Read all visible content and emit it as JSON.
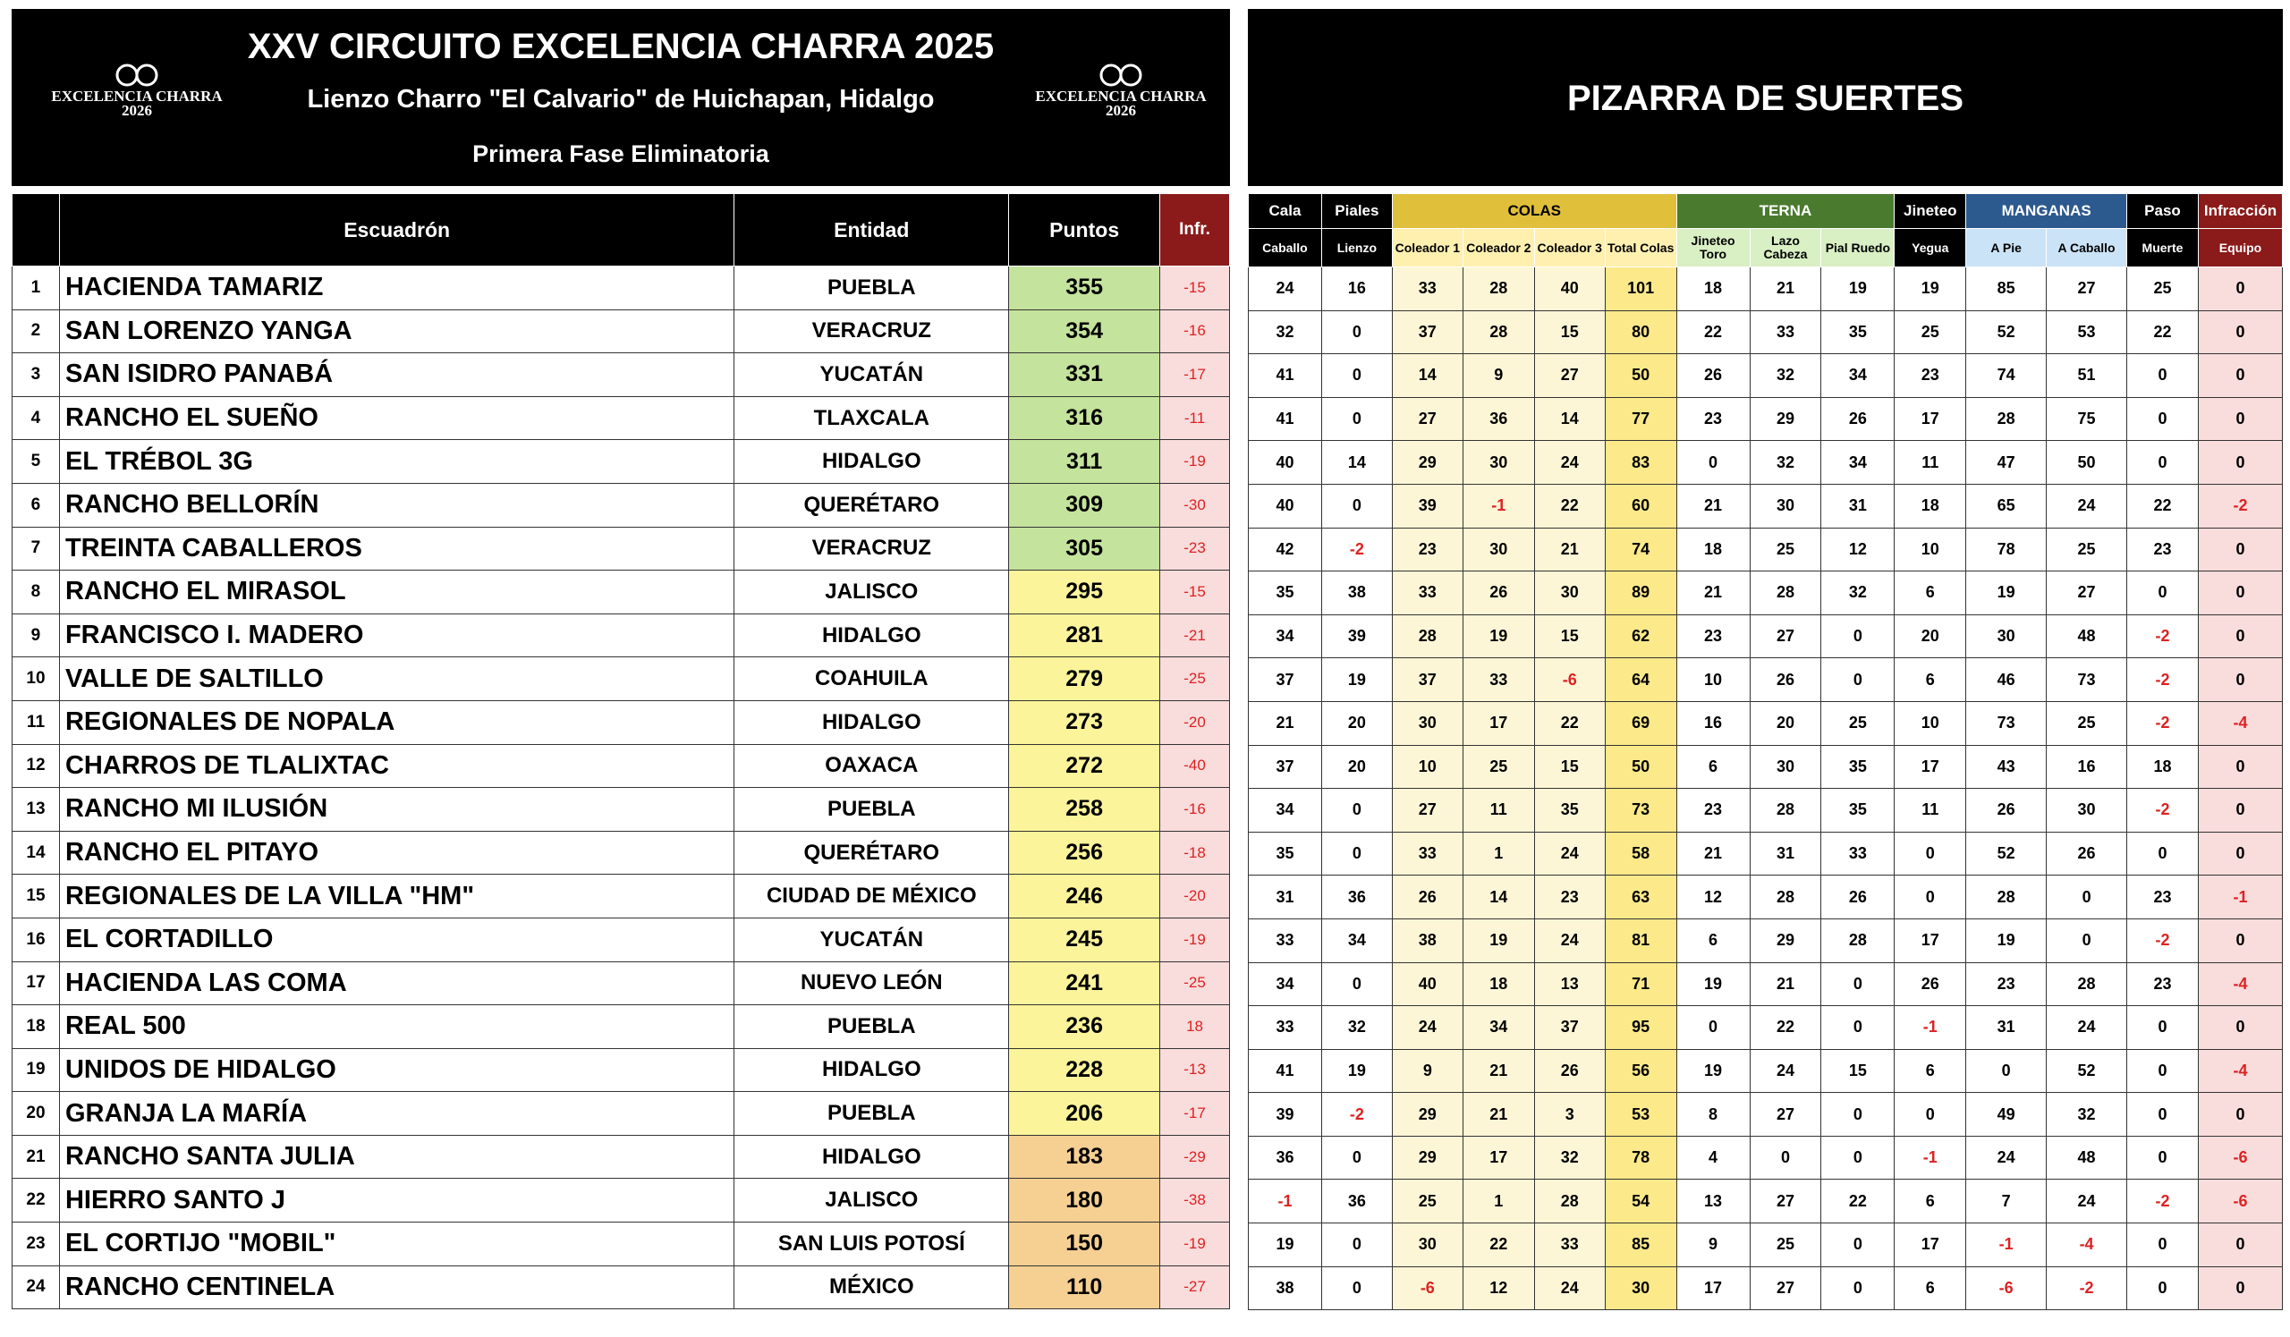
{
  "header": {
    "title": "XXV CIRCUITO EXCELENCIA CHARRA 2025",
    "venue": "Lienzo Charro \"El Calvario\" de Huichapan, Hidalgo",
    "phase": "Primera Fase Eliminatoria",
    "logo_left": {
      "name": "EXCELENCIA CHARRA",
      "year": "2026"
    },
    "logo_right": {
      "name": "EXCELENCIA CHARRA",
      "year": "2026"
    }
  },
  "standings": {
    "columns": [
      "Escuadrón",
      "Entidad",
      "Puntos",
      "Infr."
    ],
    "rows": [
      [
        1,
        "HACIENDA TAMARIZ",
        "PUEBLA",
        355,
        -15
      ],
      [
        2,
        "SAN LORENZO YANGA",
        "VERACRUZ",
        354,
        -16
      ],
      [
        3,
        "SAN ISIDRO PANABÁ",
        "YUCATÁN",
        331,
        -17
      ],
      [
        4,
        "RANCHO EL SUEÑO",
        "TLAXCALA",
        316,
        -11
      ],
      [
        5,
        "EL TRÉBOL 3G",
        "HIDALGO",
        311,
        -19
      ],
      [
        6,
        "RANCHO BELLORÍN",
        "QUERÉTARO",
        309,
        -30
      ],
      [
        7,
        "TREINTA CABALLEROS",
        "VERACRUZ",
        305,
        -23
      ],
      [
        8,
        "RANCHO EL MIRASOL",
        "JALISCO",
        295,
        -15
      ],
      [
        9,
        "FRANCISCO I. MADERO",
        "HIDALGO",
        281,
        -21
      ],
      [
        10,
        "VALLE DE SALTILLO",
        "COAHUILA",
        279,
        -25
      ],
      [
        11,
        "REGIONALES DE NOPALA",
        "HIDALGO",
        273,
        -20
      ],
      [
        12,
        "CHARROS DE TLALIXTAC",
        "OAXACA",
        272,
        -40
      ],
      [
        13,
        "RANCHO MI ILUSIÓN",
        "PUEBLA",
        258,
        -16
      ],
      [
        14,
        "RANCHO EL PITAYO",
        "QUERÉTARO",
        256,
        -18
      ],
      [
        15,
        "REGIONALES DE LA VILLA \"HM\"",
        "CIUDAD DE MÉXICO",
        246,
        -20
      ],
      [
        16,
        "EL CORTADILLO",
        "YUCATÁN",
        245,
        -19
      ],
      [
        17,
        "HACIENDA LAS COMA",
        "NUEVO LEÓN",
        241,
        -25
      ],
      [
        18,
        "REAL 500",
        "PUEBLA",
        236,
        18
      ],
      [
        19,
        "UNIDOS DE HIDALGO",
        "HIDALGO",
        228,
        -13
      ],
      [
        20,
        "GRANJA LA MARÍA",
        "PUEBLA",
        206,
        -17
      ],
      [
        21,
        "RANCHO SANTA JULIA",
        "HIDALGO",
        183,
        -29
      ],
      [
        22,
        "HIERRO SANTO J",
        "JALISCO",
        180,
        -38
      ],
      [
        23,
        "EL CORTIJO \"MOBIL\"",
        "SAN LUIS POTOSÍ",
        150,
        -19
      ],
      [
        24,
        "RANCHO CENTINELA",
        "MÉXICO",
        110,
        -27
      ]
    ]
  },
  "scoreboard": {
    "title": "PIZARRA DE SUERTES",
    "groups": [
      {
        "label": "Cala",
        "sub": "Caballo"
      },
      {
        "label": "Piales",
        "sub": "Lienzo"
      },
      {
        "label": "COLAS",
        "subs": [
          "Coleador 1",
          "Coleador 2",
          "Coleador 3",
          "Total Colas"
        ]
      },
      {
        "label": "TERNA",
        "subs": [
          "Jineteo Toro",
          "Lazo Cabeza",
          "Pial Ruedo"
        ]
      },
      {
        "label": "Jineteo",
        "sub": "Yegua"
      },
      {
        "label": "MANGANAS",
        "subs": [
          "A Pie",
          "A Caballo"
        ]
      },
      {
        "label": "Paso",
        "sub": "Muerte"
      },
      {
        "label": "Infracción",
        "sub": "Equipo"
      }
    ],
    "rows": [
      [
        24,
        16,
        33,
        28,
        40,
        101,
        18,
        21,
        19,
        19,
        85,
        27,
        25,
        0
      ],
      [
        32,
        0,
        37,
        28,
        15,
        80,
        22,
        33,
        35,
        25,
        52,
        53,
        22,
        0
      ],
      [
        41,
        0,
        14,
        9,
        27,
        50,
        26,
        32,
        34,
        23,
        74,
        51,
        0,
        0
      ],
      [
        41,
        0,
        27,
        36,
        14,
        77,
        23,
        29,
        26,
        17,
        28,
        75,
        0,
        0
      ],
      [
        40,
        14,
        29,
        30,
        24,
        83,
        0,
        32,
        34,
        11,
        47,
        50,
        0,
        0
      ],
      [
        40,
        0,
        39,
        -1,
        22,
        60,
        21,
        30,
        31,
        18,
        65,
        24,
        22,
        -2
      ],
      [
        42,
        -2,
        23,
        30,
        21,
        74,
        18,
        25,
        12,
        10,
        78,
        25,
        23,
        0
      ],
      [
        35,
        38,
        33,
        26,
        30,
        89,
        21,
        28,
        32,
        6,
        19,
        27,
        0,
        0
      ],
      [
        34,
        39,
        28,
        19,
        15,
        62,
        23,
        27,
        0,
        20,
        30,
        48,
        -2,
        0
      ],
      [
        37,
        19,
        37,
        33,
        -6,
        64,
        10,
        26,
        0,
        6,
        46,
        73,
        -2,
        0
      ],
      [
        21,
        20,
        30,
        17,
        22,
        69,
        16,
        20,
        25,
        10,
        73,
        25,
        -2,
        -4
      ],
      [
        37,
        20,
        10,
        25,
        15,
        50,
        6,
        30,
        35,
        17,
        43,
        16,
        18,
        0
      ],
      [
        34,
        0,
        27,
        11,
        35,
        73,
        23,
        28,
        35,
        11,
        26,
        30,
        -2,
        0
      ],
      [
        35,
        0,
        33,
        1,
        24,
        58,
        21,
        31,
        33,
        0,
        52,
        26,
        0,
        0
      ],
      [
        31,
        36,
        26,
        14,
        23,
        63,
        12,
        28,
        26,
        0,
        28,
        0,
        23,
        -1
      ],
      [
        33,
        34,
        38,
        19,
        24,
        81,
        6,
        29,
        28,
        17,
        19,
        0,
        -2,
        0
      ],
      [
        34,
        0,
        40,
        18,
        13,
        71,
        19,
        21,
        0,
        26,
        23,
        28,
        23,
        -4
      ],
      [
        33,
        32,
        24,
        34,
        37,
        95,
        0,
        22,
        0,
        -1,
        31,
        24,
        0,
        0
      ],
      [
        41,
        19,
        9,
        21,
        26,
        56,
        19,
        24,
        15,
        6,
        0,
        52,
        0,
        -4
      ],
      [
        39,
        -2,
        29,
        21,
        3,
        53,
        8,
        27,
        0,
        0,
        49,
        32,
        0,
        0
      ],
      [
        36,
        0,
        29,
        17,
        32,
        78,
        4,
        0,
        0,
        -1,
        24,
        48,
        0,
        -6
      ],
      [
        -1,
        36,
        25,
        1,
        28,
        54,
        13,
        27,
        22,
        6,
        7,
        24,
        -2,
        -6
      ],
      [
        19,
        0,
        30,
        22,
        33,
        85,
        9,
        25,
        0,
        17,
        -1,
        -4,
        0,
        0
      ],
      [
        38,
        0,
        -6,
        12,
        24,
        30,
        17,
        27,
        0,
        6,
        -6,
        -2,
        0,
        0
      ]
    ]
  }
}
